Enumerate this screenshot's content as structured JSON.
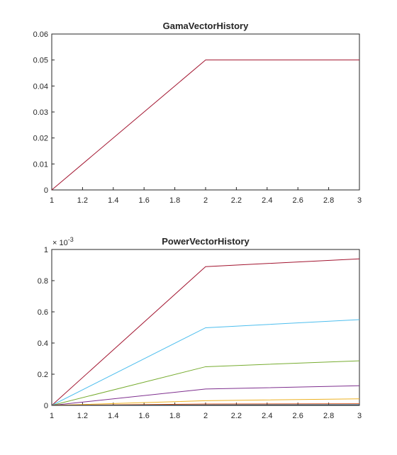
{
  "figure": {
    "background": "#ffffff"
  },
  "chart_data": [
    {
      "type": "line",
      "title": "GamaVectorHistory",
      "xlabel": "",
      "ylabel": "",
      "xlim": [
        1,
        3
      ],
      "ylim": [
        0,
        0.06
      ],
      "xticks": [
        1,
        1.2,
        1.4,
        1.6,
        1.8,
        2,
        2.2,
        2.4,
        2.6,
        2.8,
        3
      ],
      "xtick_labels": [
        "1",
        "1.2",
        "1.4",
        "1.6",
        "1.8",
        "2",
        "2.2",
        "2.4",
        "2.6",
        "2.8",
        "3"
      ],
      "yticks": [
        0,
        0.01,
        0.02,
        0.03,
        0.04,
        0.05,
        0.06
      ],
      "ytick_labels": [
        "0",
        "0.01",
        "0.02",
        "0.03",
        "0.04",
        "0.05",
        "0.06"
      ],
      "exponent_label": "",
      "grid": false,
      "legend": "none",
      "x": [
        1,
        2,
        3
      ],
      "series": [
        {
          "color": "#A2142F",
          "values": [
            0,
            0.05,
            0.05
          ]
        }
      ]
    },
    {
      "type": "line",
      "title": "PowerVectorHistory",
      "xlabel": "",
      "ylabel": "",
      "xlim": [
        1,
        3
      ],
      "ylim": [
        0,
        0.001
      ],
      "xticks": [
        1,
        1.2,
        1.4,
        1.6,
        1.8,
        2,
        2.2,
        2.4,
        2.6,
        2.8,
        3
      ],
      "xtick_labels": [
        "1",
        "1.2",
        "1.4",
        "1.6",
        "1.8",
        "2",
        "2.2",
        "2.4",
        "2.6",
        "2.8",
        "3"
      ],
      "yticks": [
        0,
        0.0002,
        0.0004,
        0.0006,
        0.0008,
        0.001
      ],
      "ytick_labels": [
        "0",
        "0.2",
        "0.4",
        "0.6",
        "0.8",
        "1"
      ],
      "exponent_label": "× 10",
      "exponent_power": "-3",
      "grid": false,
      "legend": "none",
      "x": [
        1,
        2,
        3
      ],
      "series": [
        {
          "color": "#A2142F",
          "values": [
            0,
            0.00089,
            0.00094
          ]
        },
        {
          "color": "#4DBEEE",
          "values": [
            0,
            0.000498,
            0.00055
          ]
        },
        {
          "color": "#77AC30",
          "values": [
            0,
            0.000248,
            0.000286
          ]
        },
        {
          "color": "#7E2F8E",
          "values": [
            0,
            0.000105,
            0.000126
          ]
        },
        {
          "color": "#EDB120",
          "values": [
            0,
            3e-05,
            4.2e-05
          ]
        },
        {
          "color": "#D95319",
          "values": [
            0,
            9e-06,
            1.1e-05
          ]
        },
        {
          "color": "#0072BD",
          "values": [
            0,
            3e-06,
            4e-06
          ]
        },
        {
          "color": "#2F2F2F",
          "values": [
            0,
            1.5e-06,
            1.8e-06
          ]
        }
      ]
    }
  ]
}
